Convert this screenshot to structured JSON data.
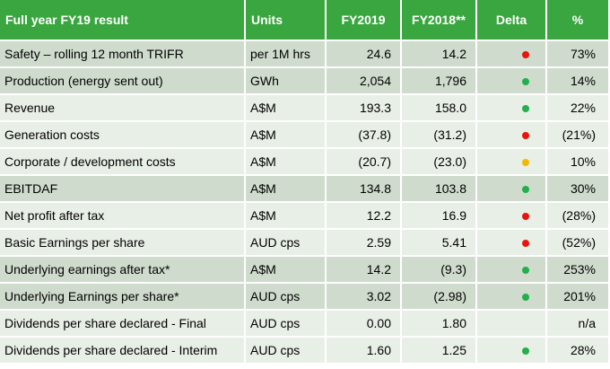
{
  "header": {
    "metric": "Full year FY19 result",
    "units": "Units",
    "fy2019": "FY2019",
    "fy2018": "FY2018**",
    "delta": "Delta",
    "pct": "%"
  },
  "status_colors": {
    "red": "#e8150c",
    "green": "#21b04b",
    "amber": "#f5b800"
  },
  "rows": [
    {
      "metric": "Safety – rolling 12 month TRIFR",
      "units": "per 1M hrs",
      "fy2019": "24.6",
      "fy2018": "14.2",
      "status": "red",
      "pct": "73%",
      "shade": "dark"
    },
    {
      "metric": "Production (energy sent out)",
      "units": "GWh",
      "fy2019": "2,054",
      "fy2018": "1,796",
      "status": "green",
      "pct": "14%",
      "shade": "dark"
    },
    {
      "metric": "Revenue",
      "units": "A$M",
      "fy2019": "193.3",
      "fy2018": "158.0",
      "status": "green",
      "pct": "22%",
      "shade": "light"
    },
    {
      "metric": "Generation costs",
      "units": "A$M",
      "fy2019": "(37.8)",
      "fy2018": "(31.2)",
      "status": "red",
      "pct": "(21%)",
      "shade": "light"
    },
    {
      "metric": "Corporate / development costs",
      "units": "A$M",
      "fy2019": "(20.7)",
      "fy2018": "(23.0)",
      "status": "amber",
      "pct": "10%",
      "shade": "light"
    },
    {
      "metric": "EBITDAF",
      "units": "A$M",
      "fy2019": "134.8",
      "fy2018": "103.8",
      "status": "green",
      "pct": "30%",
      "shade": "dark"
    },
    {
      "metric": "Net profit after tax",
      "units": "A$M",
      "fy2019": "12.2",
      "fy2018": "16.9",
      "status": "red",
      "pct": "(28%)",
      "shade": "light"
    },
    {
      "metric": "Basic Earnings per share",
      "units": "AUD cps",
      "fy2019": "2.59",
      "fy2018": "5.41",
      "status": "red",
      "pct": "(52%)",
      "shade": "light"
    },
    {
      "metric": "Underlying earnings after tax*",
      "units": "A$M",
      "fy2019": "14.2",
      "fy2018": "(9.3)",
      "status": "green",
      "pct": "253%",
      "shade": "dark"
    },
    {
      "metric": "Underlying Earnings per share*",
      "units": "AUD cps",
      "fy2019": "3.02",
      "fy2018": "(2.98)",
      "status": "green",
      "pct": "201%",
      "shade": "dark"
    },
    {
      "metric": "Dividends per share declared - Final",
      "units": "AUD cps",
      "fy2019": "0.00",
      "fy2018": "1.80",
      "status": "none",
      "pct": "n/a",
      "shade": "light"
    },
    {
      "metric": "Dividends per share declared - Interim",
      "units": "AUD cps",
      "fy2019": "1.60",
      "fy2018": "1.25",
      "status": "green",
      "pct": "28%",
      "shade": "light"
    }
  ]
}
